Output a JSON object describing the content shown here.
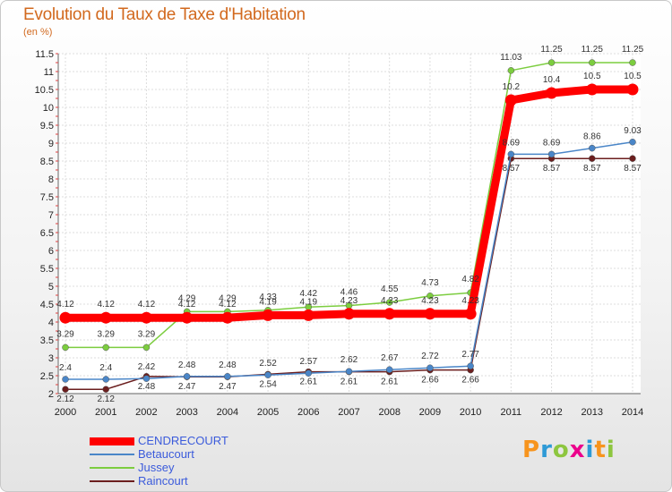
{
  "chart_data": {
    "type": "line",
    "title": "Evolution du Taux de Taxe d'Habitation",
    "subtitle": "(en %)",
    "x": [
      "2000",
      "2001",
      "2002",
      "2003",
      "2004",
      "2005",
      "2006",
      "2007",
      "2008",
      "2009",
      "2010",
      "2011",
      "2012",
      "2013",
      "2014"
    ],
    "ylim": [
      2,
      11.5
    ],
    "yticks": [
      "2",
      "2.5",
      "3",
      "3.5",
      "4",
      "4.5",
      "5",
      "5.5",
      "6",
      "6.5",
      "7",
      "7.5",
      "8",
      "8.5",
      "9",
      "9.5",
      "10",
      "10.5",
      "11",
      "11.5"
    ],
    "grid": true,
    "legend_position": "bottom-left",
    "series": [
      {
        "name": "CENDRECOURT",
        "color": "#ff0000",
        "values": [
          4.12,
          4.12,
          4.12,
          4.12,
          4.12,
          4.19,
          4.19,
          4.23,
          4.23,
          4.23,
          4.23,
          10.2,
          10.4,
          10.5,
          10.5
        ],
        "labels": [
          "4.12",
          "4.12",
          "4.12",
          "4.12",
          "4.12",
          "4.19",
          "4.19",
          "4.23",
          "4.23",
          "4.23",
          "4.23",
          "10.2",
          "10.4",
          "10.5",
          "10.5"
        ]
      },
      {
        "name": "Betaucourt",
        "color": "#4a86c8",
        "values": [
          2.4,
          2.4,
          2.42,
          2.48,
          2.48,
          2.52,
          2.57,
          2.62,
          2.67,
          2.72,
          2.77,
          8.69,
          8.69,
          8.86,
          9.03
        ],
        "labels": [
          "2.4",
          "2.4",
          "2.42",
          "2.48",
          "2.48",
          "2.52",
          "2.57",
          "2.62",
          "2.67",
          "2.72",
          "2.77",
          "8.69",
          "8.69",
          "8.86",
          "9.03"
        ]
      },
      {
        "name": "Jussey",
        "color": "#7ccd3f",
        "values": [
          3.29,
          3.29,
          3.29,
          4.29,
          4.29,
          4.33,
          4.42,
          4.46,
          4.55,
          4.73,
          4.82,
          11.03,
          11.25,
          11.25,
          11.25
        ],
        "labels": [
          "3.29",
          "3.29",
          "3.29",
          "4.29",
          "4.29",
          "4.33",
          "4.42",
          "4.46",
          "4.55",
          "4.73",
          "4.82",
          "11.03",
          "11.25",
          "11.25",
          "11.25"
        ]
      },
      {
        "name": "Raincourt",
        "color": "#6b1e1e",
        "values": [
          2.12,
          2.12,
          2.48,
          2.47,
          2.47,
          2.54,
          2.61,
          2.61,
          2.61,
          2.66,
          2.66,
          8.57,
          8.57,
          8.57,
          8.57
        ],
        "labels": [
          "2.12",
          "2.12",
          "2.48",
          "2.47",
          "2.47",
          "2.54",
          "2.61",
          "2.61",
          "2.61",
          "2.66",
          "2.66",
          "8.57",
          "8.57",
          "8.57",
          "8.57"
        ]
      }
    ]
  },
  "logo": {
    "text": "Proxiti",
    "colors": [
      "#f7941d",
      "#2e9ad6",
      "#8dc63f",
      "#ec008c",
      "#2e9ad6",
      "#f7941d",
      "#8dc63f"
    ]
  }
}
